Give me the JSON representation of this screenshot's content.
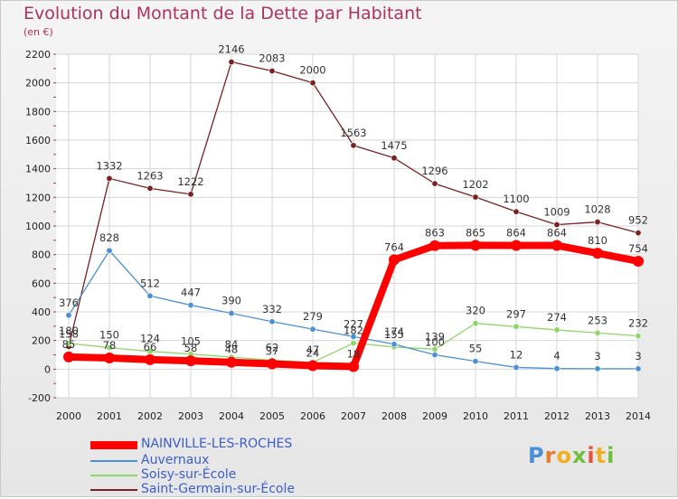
{
  "title": "Evolution du Montant de la Dette par Habitant",
  "subtitle": "(en €)",
  "logo": {
    "text": "Proxiti",
    "colors": [
      "#4a90d9",
      "#e87a2a",
      "#f0b020",
      "#6fbf3a",
      "#e8503a",
      "#f0b020",
      "#6fbf3a"
    ]
  },
  "chart_data": {
    "type": "line",
    "title": "Evolution du Montant de la Dette par Habitant",
    "subtitle": "(en €)",
    "x": [
      "2000",
      "2001",
      "2002",
      "2003",
      "2004",
      "2005",
      "2006",
      "2007",
      "2008",
      "2009",
      "2010",
      "2011",
      "2012",
      "2013",
      "2014"
    ],
    "ylim": [
      -200,
      2200
    ],
    "yticks": [
      "-200",
      "0",
      "200",
      "400",
      "600",
      "800",
      "1000",
      "1200",
      "1400",
      "1600",
      "1800",
      "2000",
      "2200"
    ],
    "grid": true,
    "legend_position": "bottom-left",
    "series": [
      {
        "name": "NAINVILLE-LES-ROCHES",
        "color": "#ff0000",
        "values": [
          85,
          78,
          66,
          58,
          48,
          37,
          24,
          18,
          764,
          863,
          865,
          864,
          864,
          810,
          754
        ],
        "labels": [
          "85",
          "78",
          "66",
          "58",
          "48",
          "37",
          "24",
          "18",
          "764",
          "863",
          "865",
          "864",
          "864",
          "810",
          "754"
        ]
      },
      {
        "name": "Auvernaux",
        "color": "#4a90d2",
        "values": [
          376,
          828,
          512,
          447,
          390,
          332,
          279,
          227,
          174,
          100,
          55,
          12,
          4,
          3,
          3
        ],
        "labels": [
          "376",
          "828",
          "512",
          "447",
          "390",
          "332",
          "279",
          "227",
          "174",
          "100",
          "55",
          "12",
          "4",
          "3",
          "3"
        ]
      },
      {
        "name": "Soisy-sur-École",
        "color": "#8fd66a",
        "values": [
          180,
          150,
          124,
          105,
          84,
          62,
          47,
          182,
          155,
          139,
          320,
          297,
          274,
          253,
          232
        ],
        "labels": [
          "180",
          "150",
          "124",
          "105",
          "84",
          "62",
          "47",
          "182",
          "155",
          "139",
          "320",
          "297",
          "274",
          "253",
          "232"
        ]
      },
      {
        "name": "Saint-Germain-sur-École",
        "color": "#7a2020",
        "values": [
          158,
          1332,
          1263,
          1222,
          2146,
          2083,
          2000,
          1563,
          1475,
          1296,
          1202,
          1100,
          1009,
          1028,
          952
        ],
        "labels": [
          "158",
          "1332",
          "1263",
          "1222",
          "2146",
          "2083",
          "2000",
          "1563",
          "1475",
          "1296",
          "1202",
          "1100",
          "1009",
          "1028",
          "952"
        ]
      }
    ]
  }
}
